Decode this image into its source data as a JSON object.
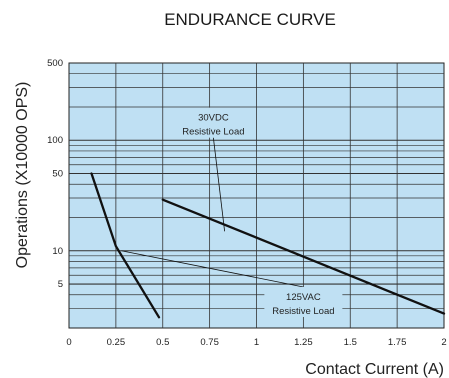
{
  "chart_data": {
    "type": "line",
    "title": "ENDURANCE CURVE",
    "xlabel": "Contact Current (A)",
    "ylabel": "Operations (X10000 OPS)",
    "x_scale": "linear",
    "y_scale": "log",
    "xlim": [
      0,
      2
    ],
    "ylim": [
      2,
      500
    ],
    "x_ticks": [
      0,
      0.25,
      0.5,
      0.75,
      1,
      1.25,
      1.5,
      1.75,
      2
    ],
    "x_tick_labels": [
      "0",
      "0.25",
      "0.5",
      "0.75",
      "1",
      "1.25",
      "1.5",
      "1.75",
      "2"
    ],
    "y_ticks": [
      5,
      10,
      50,
      100,
      500
    ],
    "y_tick_labels": [
      "5",
      "10",
      "50",
      "100",
      "500"
    ],
    "grid": true,
    "background": "#bfe0f3",
    "series": [
      {
        "name": "125VAC Resistive Load",
        "x": [
          0.12,
          0.25,
          0.48
        ],
        "y": [
          50,
          11,
          2.5
        ],
        "color": "#111111"
      },
      {
        "name": "30VDC Resistive Load",
        "x": [
          0.5,
          2
        ],
        "y": [
          29,
          2.7
        ],
        "color": "#111111"
      }
    ],
    "annotations": [
      {
        "lines": [
          "30VDC",
          "Resistive Load"
        ],
        "text_at": [
          0.77,
          130
        ],
        "points_to": [
          0.83,
          15
        ]
      },
      {
        "lines": [
          "125VAC",
          "Resistive Load"
        ],
        "text_at": [
          1.25,
          3.1
        ],
        "points_to": [
          0.28,
          10
        ]
      }
    ]
  }
}
